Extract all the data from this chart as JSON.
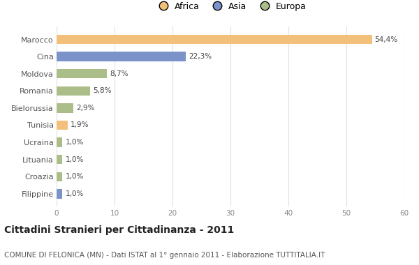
{
  "categories": [
    "Marocco",
    "Cina",
    "Moldova",
    "Romania",
    "Bielorussia",
    "Tunisia",
    "Ucraina",
    "Lituania",
    "Croazia",
    "Filippine"
  ],
  "values": [
    54.4,
    22.3,
    8.7,
    5.8,
    2.9,
    1.9,
    1.0,
    1.0,
    1.0,
    1.0
  ],
  "labels": [
    "54,4%",
    "22,3%",
    "8,7%",
    "5,8%",
    "2,9%",
    "1,9%",
    "1,0%",
    "1,0%",
    "1,0%",
    "1,0%"
  ],
  "colors": [
    "#F2C07A",
    "#7B93C9",
    "#ABBE8A",
    "#ABBE8A",
    "#ABBE8A",
    "#F2C07A",
    "#ABBE8A",
    "#ABBE8A",
    "#ABBE8A",
    "#7B93C9"
  ],
  "legend_labels": [
    "Africa",
    "Asia",
    "Europa"
  ],
  "legend_colors": [
    "#F2C07A",
    "#7B93C9",
    "#ABBE8A"
  ],
  "title": "Cittadini Stranieri per Cittadinanza - 2011",
  "subtitle": "COMUNE DI FELONICA (MN) - Dati ISTAT al 1° gennaio 2011 - Elaborazione TUTTITALIA.IT",
  "xlim": [
    0,
    60
  ],
  "xticks": [
    0,
    10,
    20,
    30,
    40,
    50,
    60
  ],
  "bg_color": "#ffffff",
  "grid_color": "#e0e0e0",
  "bar_height": 0.55
}
